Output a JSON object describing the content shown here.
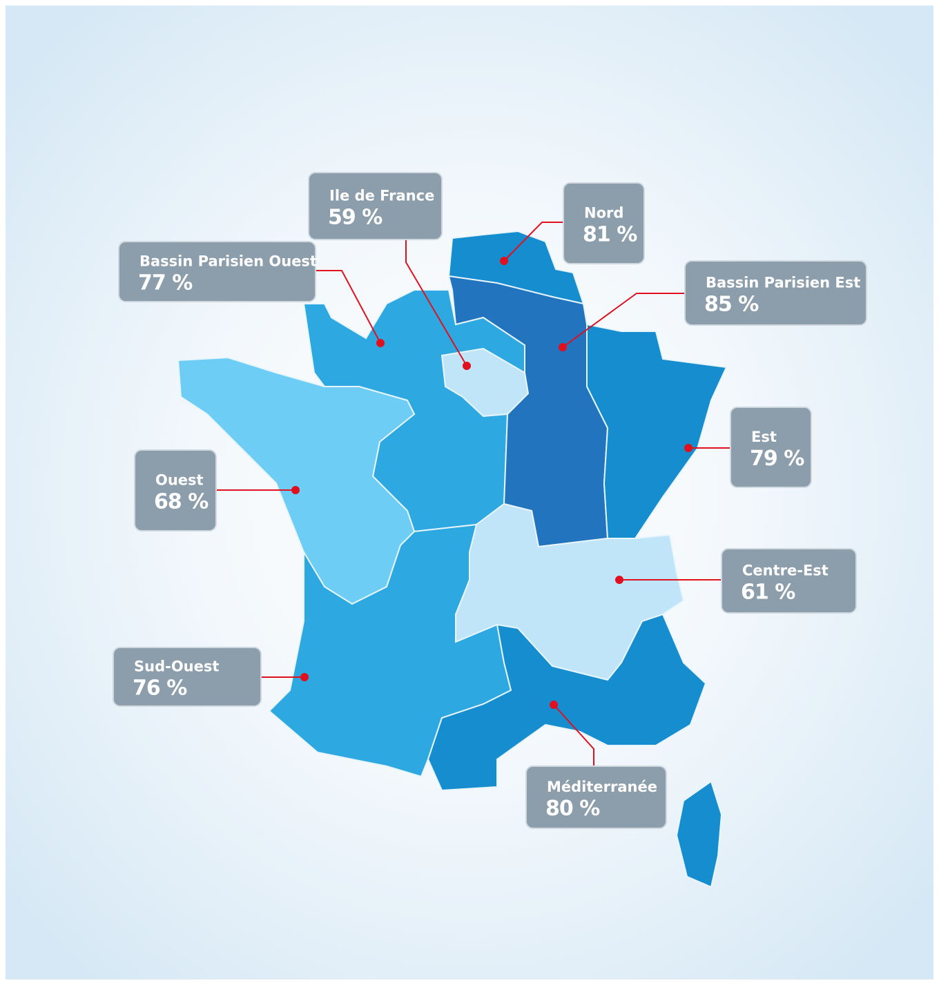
{
  "regions": [
    {
      "name": "Ile de France",
      "value": "59 %",
      "color": "#c0e5f8"
    },
    {
      "name": "Nord",
      "value": "81 %",
      "color": "#158dce"
    },
    {
      "name": "Bassin Parisien Ouest",
      "value": "77 %",
      "color": "#2ea8e1"
    },
    {
      "name": "Bassin Parisien Est",
      "value": "85 %",
      "color": "#2274bf"
    },
    {
      "name": "Est",
      "value": "79 %",
      "color": "#158dce"
    },
    {
      "name": "Ouest",
      "value": "68 %",
      "color": "#6dcdf4"
    },
    {
      "name": "Centre-Est",
      "value": "61 %",
      "color": "#c0e5f8"
    },
    {
      "name": "Sud-Ouest",
      "value": "76 %",
      "color": "#2ea8e1"
    },
    {
      "name": "Méditerranée",
      "value": "80 %",
      "color": "#158dce"
    }
  ]
}
